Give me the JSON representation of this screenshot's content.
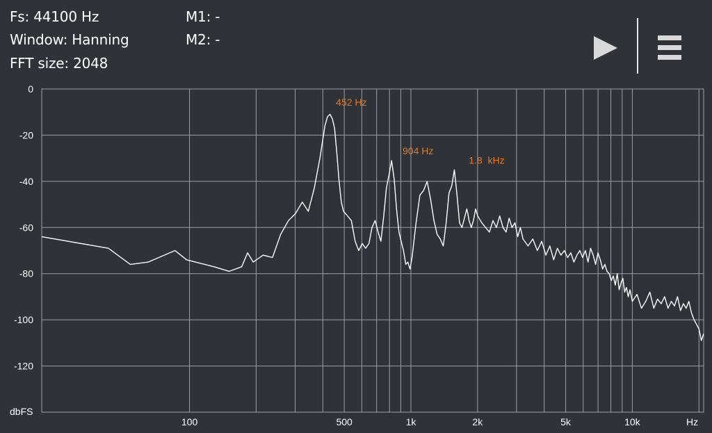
{
  "header": {
    "fs": "Fs: 44100 Hz",
    "window": "Window: Hanning",
    "fft_size": "FFT size: 2048",
    "m1": "M1: -",
    "m2": "M2: -"
  },
  "controls": {
    "play_icon": "play-icon",
    "menu_icon": "hamburger-menu-icon"
  },
  "colors": {
    "background": "#2f3338",
    "grid": "#9aa0a6",
    "trace": "#ffffff",
    "annotation": "#e07a2a"
  },
  "chart_data": {
    "type": "line",
    "x_scale": "log",
    "xlim": [
      21.5,
      21000
    ],
    "ylim": [
      -140,
      0
    ],
    "ylabel": "dbFS",
    "xlabel": "Hz",
    "grid": true,
    "y_ticks": [
      {
        "value": 0,
        "label": "0"
      },
      {
        "value": -20,
        "label": "-20"
      },
      {
        "value": -40,
        "label": "-40"
      },
      {
        "value": -60,
        "label": "-60"
      },
      {
        "value": -80,
        "label": "-80"
      },
      {
        "value": -100,
        "label": "-100"
      },
      {
        "value": -120,
        "label": "-120"
      }
    ],
    "x_ticks": [
      {
        "value": 100,
        "label": "100"
      },
      {
        "value": 500,
        "label": "500"
      },
      {
        "value": 1000,
        "label": "1k"
      },
      {
        "value": 2000,
        "label": "2k"
      },
      {
        "value": 5000,
        "label": "5k"
      },
      {
        "value": 10000,
        "label": "10k"
      }
    ],
    "x_gridlines": [
      100,
      200,
      300,
      400,
      500,
      600,
      700,
      800,
      900,
      1000,
      2000,
      3000,
      4000,
      5000,
      6000,
      7000,
      8000,
      9000,
      10000,
      20000
    ],
    "annotations": [
      {
        "x": 452,
        "y": -10,
        "label": "452 Hz"
      },
      {
        "x": 904,
        "y": -31,
        "label": "904 Hz"
      },
      {
        "x": 1800,
        "y": -35,
        "label": "1.8  kHz"
      }
    ],
    "series": [
      {
        "x": [
          21.5,
          43,
          54,
          65,
          86,
          97,
          129,
          151,
          172,
          183,
          194,
          215,
          237,
          258,
          280,
          301,
          323,
          344,
          366,
          388,
          409,
          420,
          431,
          442,
          452,
          463,
          474,
          485,
          496,
          517,
          538,
          560,
          581,
          603,
          624,
          646,
          667,
          689,
          711,
          732,
          754,
          775,
          797,
          818,
          840,
          861,
          883,
          904,
          926,
          948,
          969,
          991,
          1012,
          1055,
          1098,
          1141,
          1184,
          1228,
          1271,
          1314,
          1357,
          1400,
          1443,
          1486,
          1529,
          1572,
          1615,
          1658,
          1701,
          1744,
          1787,
          1808,
          1830,
          1873,
          1916,
          1959,
          2002,
          2089,
          2175,
          2261,
          2347,
          2433,
          2519,
          2605,
          2691,
          2777,
          2863,
          2950,
          3036,
          3122,
          3208,
          3380,
          3553,
          3725,
          3897,
          4070,
          4242,
          4414,
          4586,
          4759,
          4931,
          5103,
          5275,
          5448,
          5620,
          5792,
          5965,
          6137,
          6309,
          6481,
          6654,
          6826,
          6998,
          7170,
          7343,
          7515,
          7687,
          7859,
          8032,
          8204,
          8376,
          8549,
          8721,
          8893,
          9065,
          9238,
          9410,
          9582,
          9754,
          10000,
          10500,
          11000,
          11500,
          12000,
          12500,
          13000,
          13500,
          14000,
          14500,
          15000,
          15500,
          16000,
          16500,
          17000,
          17500,
          18000,
          18500,
          19000,
          19500,
          20000,
          20500,
          21000
        ],
        "y": [
          -64,
          -69,
          -76,
          -75,
          -70,
          -74,
          -77,
          -79,
          -77,
          -71,
          -75,
          -72,
          -73,
          -63,
          -57,
          -54,
          -49,
          -53,
          -43,
          -30,
          -16,
          -12,
          -11,
          -13,
          -17,
          -28,
          -40,
          -49,
          -53,
          -55,
          -57,
          -66,
          -70,
          -67,
          -69,
          -67,
          -60,
          -57,
          -62,
          -66,
          -55,
          -43,
          -37,
          -31,
          -39,
          -52,
          -62,
          -66,
          -70,
          -76,
          -75,
          -78,
          -73,
          -58,
          -46,
          -44,
          -40,
          -48,
          -57,
          -63,
          -65,
          -68,
          -58,
          -45,
          -42,
          -35,
          -46,
          -58,
          -60,
          -56,
          -52,
          -54,
          -57,
          -60,
          -57,
          -52,
          -55,
          -58,
          -60,
          -62,
          -57,
          -60,
          -55,
          -60,
          -62,
          -56,
          -60,
          -58,
          -64,
          -60,
          -65,
          -68,
          -65,
          -70,
          -66,
          -72,
          -68,
          -74,
          -69,
          -72,
          -70,
          -73,
          -71,
          -75,
          -72,
          -70,
          -73,
          -70,
          -75,
          -69,
          -72,
          -76,
          -71,
          -74,
          -78,
          -76,
          -79,
          -80,
          -83,
          -81,
          -85,
          -80,
          -87,
          -84,
          -82,
          -88,
          -86,
          -90,
          -87,
          -92,
          -89,
          -95,
          -92,
          -88,
          -95,
          -91,
          -93,
          -90,
          -95,
          -92,
          -94,
          -90,
          -96,
          -93,
          -95,
          -92,
          -97,
          -100,
          -102,
          -104,
          -109,
          -106
        ]
      }
    ]
  }
}
